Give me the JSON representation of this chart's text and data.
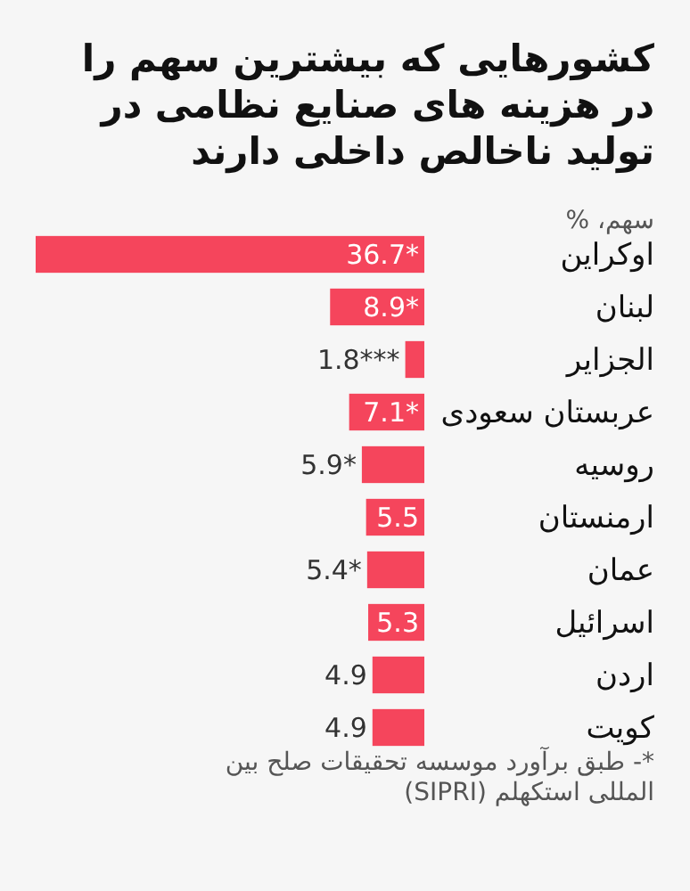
{
  "chart_data": {
    "type": "bar",
    "orientation": "horizontal",
    "title": "کشورهایی که بیشترین سهم را در هزینه های صنایع نظامی در تولید ناخالص داخلی دارند",
    "subtitle": "سهم، %",
    "categories": [
      "اوکراین",
      "لبنان",
      "الجزایر",
      "عربستان سعودی",
      "روسیه",
      "ارمنستان",
      "عمان",
      "اسرائیل",
      "اردن",
      "کویت"
    ],
    "values": [
      36.7,
      8.9,
      1.8,
      7.1,
      5.9,
      5.5,
      5.4,
      5.3,
      4.9,
      4.9
    ],
    "value_labels": [
      "36.7*",
      "8.9*",
      "1.8***",
      "7.1*",
      "5.9*",
      "5.5",
      "5.4*",
      "5.3",
      "4.9",
      "4.9"
    ],
    "color": "#f5455c",
    "annotations": [
      "*- طبق برآورد موسسه تحقیقات صلح بین المللی استکهلم (SIPRI)"
    ]
  }
}
